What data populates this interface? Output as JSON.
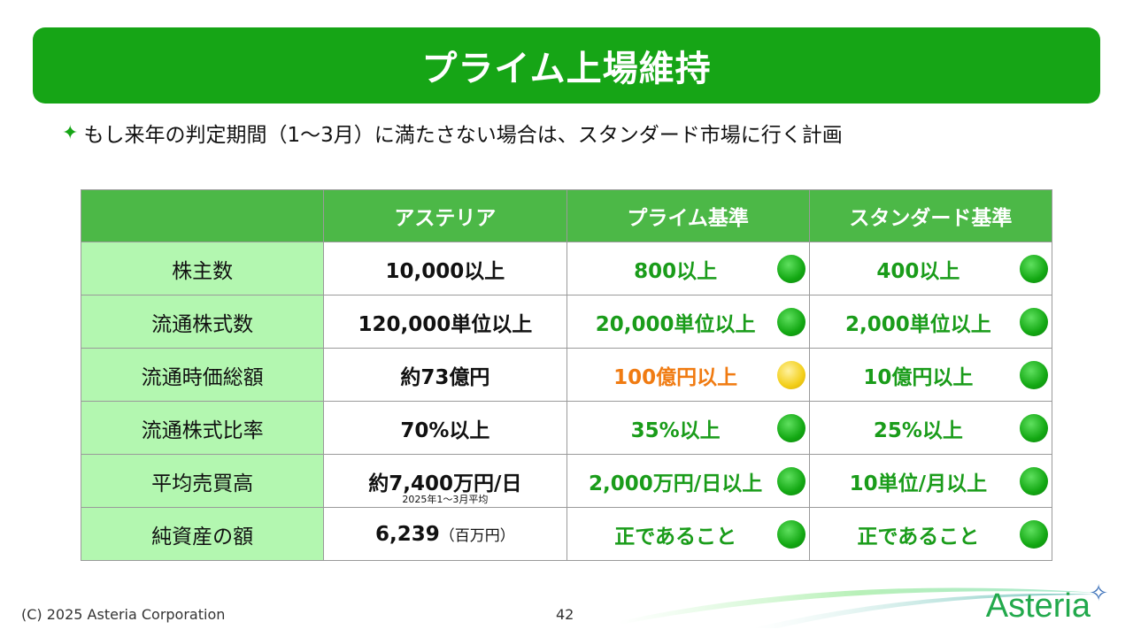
{
  "title": "プライム上場維持",
  "bullet": "もし来年の判定期間（1～3月）に満たさない場合は、スタンダード市場に行く計画",
  "table": {
    "headers": [
      "",
      "アステリア",
      "プライム基準",
      "スタンダード基準"
    ],
    "rows": [
      {
        "label": "株主数",
        "asteria": "10,000以上",
        "prime": "800以上",
        "prime_status": "green",
        "standard": "400以上",
        "standard_status": "green"
      },
      {
        "label": "流通株式数",
        "asteria": "120,000単位以上",
        "prime": "20,000単位以上",
        "prime_status": "green",
        "standard": "2,000単位以上",
        "standard_status": "green"
      },
      {
        "label": "流通時価総額",
        "asteria": "約73億円",
        "prime": "100億円以上",
        "prime_status": "yellow",
        "standard": "10億円以上",
        "standard_status": "green"
      },
      {
        "label": "流通株式比率",
        "asteria": "70%以上",
        "prime": "35%以上",
        "prime_status": "green",
        "standard": "25%以上",
        "standard_status": "green"
      },
      {
        "label": "平均売買高",
        "asteria": "約7,400万円/日",
        "asteria_note": "2025年1～3月平均",
        "prime": "2,000万円/日以上",
        "prime_status": "green",
        "standard": "10単位/月以上",
        "standard_status": "green"
      },
      {
        "label": "純資産の額",
        "asteria": "6,239",
        "asteria_unit": "（百万円）",
        "prime": "正であること",
        "prime_status": "green",
        "standard": "正であること",
        "standard_status": "green"
      }
    ]
  },
  "footer": {
    "copyright": "(C) 2025 Asteria Corporation",
    "page": "42",
    "logo": "Asteria"
  },
  "colors": {
    "brand_green": "#16a516",
    "header_green": "#4cb847",
    "label_green": "#b3f7b0",
    "ok_text": "#1a9c1a",
    "warn_text": "#f07b12"
  }
}
